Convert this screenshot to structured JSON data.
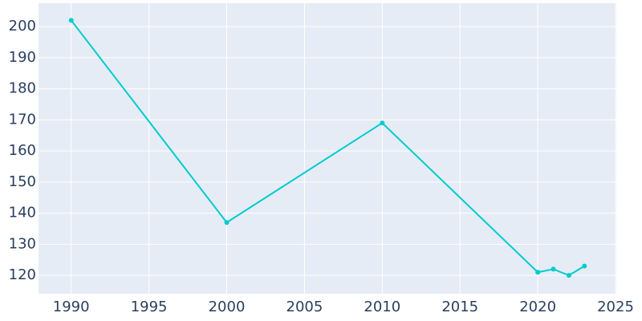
{
  "chart_data": {
    "type": "line",
    "x": [
      1990,
      2000,
      2010,
      2020,
      2021,
      2022,
      2023
    ],
    "series": [
      {
        "color": "#00cccc",
        "values": [
          202,
          137,
          169,
          121,
          122,
          120,
          123
        ]
      }
    ],
    "xlim": [
      1987.9,
      2025.05
    ],
    "xticks": [
      1990,
      1995,
      2000,
      2005,
      2010,
      2015,
      2020,
      2025
    ],
    "ylim": [
      114.1,
      207.5
    ],
    "yticks": [
      120,
      130,
      140,
      150,
      160,
      170,
      180,
      190,
      200
    ],
    "grid": true
  }
}
